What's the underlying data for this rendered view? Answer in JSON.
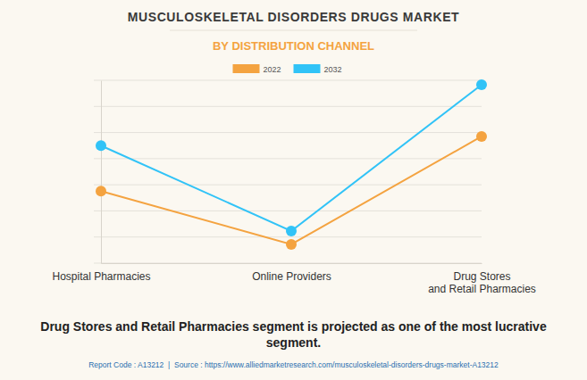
{
  "chart_data": {
    "type": "line",
    "title": "MUSCULOSKELETAL DISORDERS DRUGS MARKET",
    "subtitle": "BY DISTRIBUTION CHANNEL",
    "categories": [
      "Hospital Pharmacies",
      "Online Providers",
      "Drug Stores\nand Retail Pharmacies"
    ],
    "series": [
      {
        "name": "2022",
        "color": "#f4a340",
        "marker": "circle",
        "values": [
          2.76,
          0.72,
          4.85
        ]
      },
      {
        "name": "2032",
        "color": "#31c3f7",
        "marker": "circle",
        "values": [
          4.5,
          1.23,
          6.83
        ]
      }
    ],
    "ylim": [
      0,
      7
    ],
    "yticks": [
      0,
      1,
      2,
      3,
      4,
      5,
      6,
      7
    ],
    "grid": true,
    "tick_labels": "x",
    "legend": "top",
    "annotations": [
      "Drug Stores and Retail Pharmacies segment is projected as one of the most lucrative\nsegment.",
      "Report Code : A13212  |  Source : https://www.alliedmarketresearch.com/musculoskeletal-disorders-drugs-market-A13212"
    ]
  }
}
